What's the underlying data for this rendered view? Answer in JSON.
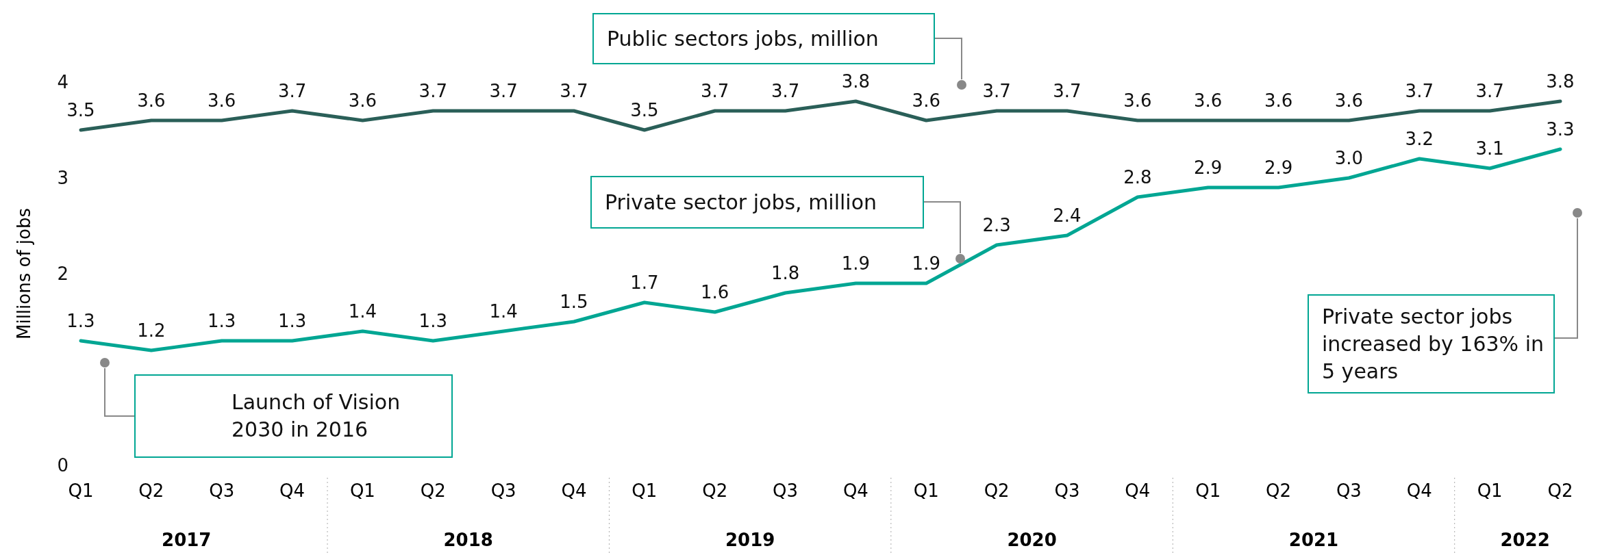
{
  "chart_data": {
    "type": "line",
    "ylabel": "Millions of jobs",
    "categories": [
      "Q1",
      "Q2",
      "Q3",
      "Q4",
      "Q1",
      "Q2",
      "Q3",
      "Q4",
      "Q1",
      "Q2",
      "Q3",
      "Q4",
      "Q1",
      "Q2",
      "Q3",
      "Q4",
      "Q1",
      "Q2",
      "Q3",
      "Q4",
      "Q1",
      "Q2"
    ],
    "series": [
      {
        "color": "#2a5f58",
        "values": [
          3.5,
          3.6,
          3.6,
          3.7,
          3.6,
          3.7,
          3.7,
          3.7,
          3.5,
          3.7,
          3.7,
          3.8,
          3.6,
          3.7,
          3.7,
          3.6,
          3.6,
          3.6,
          3.6,
          3.7,
          3.7,
          3.8
        ],
        "value_labels": [
          "3.5",
          "3.6",
          "3.6",
          "3.7",
          "3.6",
          "3.7",
          "3.7",
          "3.7",
          "3.5",
          "3.7",
          "3.7",
          "3.8",
          "3.6",
          "3.7",
          "3.7",
          "3.6",
          "3.6",
          "3.6",
          "3.6",
          "3.7",
          "3.7",
          "3.8"
        ]
      },
      {
        "color": "#00a693",
        "values": [
          1.3,
          1.2,
          1.3,
          1.3,
          1.4,
          1.3,
          1.4,
          1.5,
          1.7,
          1.6,
          1.8,
          1.9,
          1.9,
          2.3,
          2.4,
          2.8,
          2.9,
          2.9,
          3.0,
          3.2,
          3.1,
          3.3
        ],
        "value_labels": [
          "1.3",
          "1.2",
          "1.3",
          "1.3",
          "1.4",
          "1.3",
          "1.4",
          "1.5",
          "1.7",
          "1.6",
          "1.8",
          "1.9",
          "1.9",
          "2.3",
          "2.4",
          "2.8",
          "2.9",
          "2.9",
          "3.0",
          "3.2",
          "3.1",
          "3.3"
        ]
      }
    ],
    "ylim": [
      0,
      4
    ],
    "yticks": [
      0,
      2,
      3,
      4
    ],
    "grid": false,
    "marker": "none",
    "line_style": "solid",
    "annotations": [
      "Public sectors jobs, million",
      "Private sector jobs, million",
      "Launch of Vision 2030 in 2016",
      "Private sector jobs increased by 163% in 5 years",
      "2017",
      "2018",
      "2019",
      "2020",
      "2021",
      "2022"
    ]
  }
}
